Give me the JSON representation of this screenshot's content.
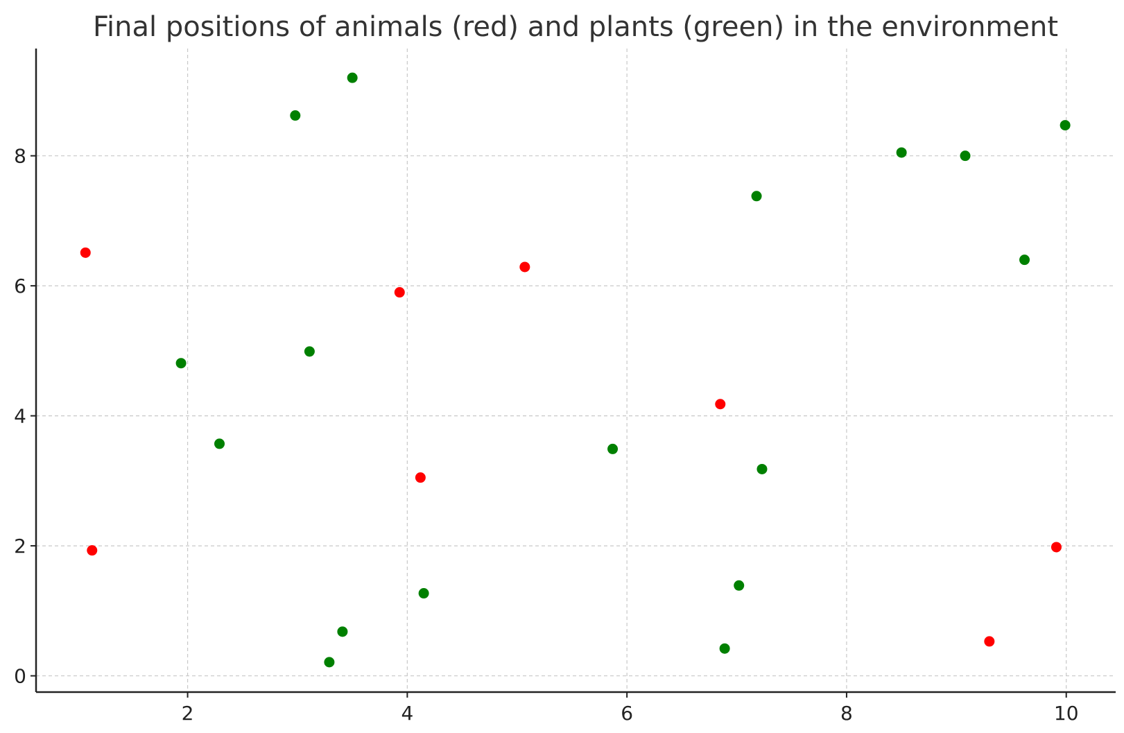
{
  "chart_data": {
    "type": "scatter",
    "title": "Final positions of animals (red) and plants (green) in the environment",
    "xlabel": "",
    "ylabel": "",
    "xlim": [
      0.62,
      10.45
    ],
    "ylim": [
      -0.25,
      9.65
    ],
    "xticks": [
      "2",
      "4",
      "6",
      "8",
      "10"
    ],
    "yticks": [
      "0",
      "2",
      "4",
      "6",
      "8"
    ],
    "grid": true,
    "legend": "none",
    "series": [
      {
        "color": "#ff0000",
        "points": [
          {
            "x": 1.07,
            "y": 6.51
          },
          {
            "x": 1.13,
            "y": 1.93
          },
          {
            "x": 3.93,
            "y": 5.9
          },
          {
            "x": 4.12,
            "y": 3.05
          },
          {
            "x": 5.07,
            "y": 6.29
          },
          {
            "x": 6.85,
            "y": 4.18
          },
          {
            "x": 9.3,
            "y": 0.53
          },
          {
            "x": 9.91,
            "y": 1.98
          }
        ]
      },
      {
        "color": "#008000",
        "points": [
          {
            "x": 1.94,
            "y": 4.81
          },
          {
            "x": 2.29,
            "y": 3.57
          },
          {
            "x": 2.98,
            "y": 8.62
          },
          {
            "x": 3.11,
            "y": 4.99
          },
          {
            "x": 3.29,
            "y": 0.21
          },
          {
            "x": 3.41,
            "y": 0.68
          },
          {
            "x": 3.5,
            "y": 9.2
          },
          {
            "x": 4.15,
            "y": 1.27
          },
          {
            "x": 5.87,
            "y": 3.49
          },
          {
            "x": 6.89,
            "y": 0.42
          },
          {
            "x": 7.02,
            "y": 1.39
          },
          {
            "x": 7.18,
            "y": 7.38
          },
          {
            "x": 7.23,
            "y": 3.18
          },
          {
            "x": 8.5,
            "y": 8.05
          },
          {
            "x": 9.08,
            "y": 8.0
          },
          {
            "x": 9.62,
            "y": 6.4
          },
          {
            "x": 9.99,
            "y": 8.47
          }
        ]
      }
    ]
  }
}
